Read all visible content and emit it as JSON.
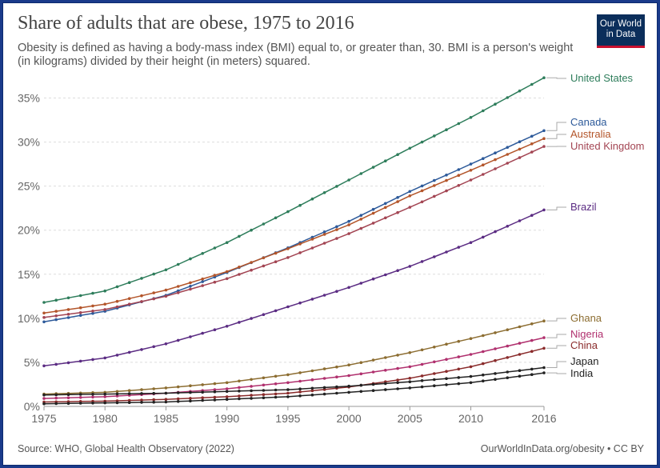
{
  "header": {
    "title": "Share of adults that are obese, 1975 to 2016",
    "subtitle": "Obesity is defined as having a body-mass index (BMI) equal to, or greater than, 30. BMI is a person's weight (in kilograms) divided by their height (in meters) squared.",
    "logo_line1": "Our World",
    "logo_line2": "in Data",
    "logo_bg": "#0b2e5b",
    "logo_accent": "#c8102e"
  },
  "footer": {
    "source": "Source: WHO, Global Health Observatory (2022)",
    "credit": "OurWorldInData.org/obesity • CC BY"
  },
  "chart_data": {
    "type": "line",
    "title": "Share of adults that are obese, 1975 to 2016",
    "xlabel": "",
    "ylabel": "",
    "xlim": [
      1975,
      2016
    ],
    "ylim": [
      0,
      37.5
    ],
    "y_ticks": [
      0,
      5,
      10,
      15,
      20,
      25,
      30,
      35
    ],
    "y_tick_labels": [
      "0%",
      "5%",
      "10%",
      "15%",
      "20%",
      "25%",
      "30%",
      "35%"
    ],
    "x_ticks": [
      1975,
      1980,
      1985,
      1990,
      1995,
      2000,
      2005,
      2010,
      2016
    ],
    "x_tick_labels": [
      "1975",
      "1980",
      "1985",
      "1990",
      "1995",
      "2000",
      "2005",
      "2010",
      "2016"
    ],
    "grid": "horizontal dashed",
    "legend": "labels at right end of lines",
    "series": [
      {
        "name": "United States",
        "color": "#2e7d5b",
        "anchors": [
          [
            1975,
            11.8
          ],
          [
            1980,
            13.1
          ],
          [
            1985,
            15.5
          ],
          [
            1990,
            18.6
          ],
          [
            1995,
            22.1
          ],
          [
            2000,
            25.7
          ],
          [
            2005,
            29.3
          ],
          [
            2010,
            32.8
          ],
          [
            2016,
            37.3
          ]
        ]
      },
      {
        "name": "Canada",
        "color": "#2d5a9a",
        "anchors": [
          [
            1975,
            9.6
          ],
          [
            1980,
            10.8
          ],
          [
            1985,
            12.6
          ],
          [
            1990,
            15.2
          ],
          [
            1995,
            18.0
          ],
          [
            2000,
            21.0
          ],
          [
            2005,
            24.4
          ],
          [
            2010,
            27.5
          ],
          [
            2016,
            31.3
          ]
        ]
      },
      {
        "name": "Australia",
        "color": "#b3552a",
        "anchors": [
          [
            1975,
            10.6
          ],
          [
            1980,
            11.6
          ],
          [
            1985,
            13.2
          ],
          [
            1990,
            15.3
          ],
          [
            1995,
            17.9
          ],
          [
            2000,
            20.6
          ],
          [
            2005,
            23.9
          ],
          [
            2010,
            26.8
          ],
          [
            2016,
            30.4
          ]
        ]
      },
      {
        "name": "United Kingdom",
        "color": "#a34553",
        "anchors": [
          [
            1975,
            10.1
          ],
          [
            1980,
            11.0
          ],
          [
            1985,
            12.5
          ],
          [
            1990,
            14.5
          ],
          [
            1995,
            16.9
          ],
          [
            2000,
            19.6
          ],
          [
            2005,
            22.6
          ],
          [
            2010,
            25.7
          ],
          [
            2016,
            29.5
          ]
        ]
      },
      {
        "name": "Brazil",
        "color": "#5b2c83",
        "anchors": [
          [
            1975,
            4.6
          ],
          [
            1980,
            5.5
          ],
          [
            1985,
            7.1
          ],
          [
            1990,
            9.1
          ],
          [
            1995,
            11.3
          ],
          [
            2000,
            13.5
          ],
          [
            2005,
            15.9
          ],
          [
            2010,
            18.6
          ],
          [
            2016,
            22.3
          ]
        ]
      },
      {
        "name": "Ghana",
        "color": "#8c6d31",
        "anchors": [
          [
            1975,
            1.4
          ],
          [
            1980,
            1.6
          ],
          [
            1985,
            2.1
          ],
          [
            1990,
            2.7
          ],
          [
            1995,
            3.6
          ],
          [
            2000,
            4.7
          ],
          [
            2005,
            6.1
          ],
          [
            2010,
            7.7
          ],
          [
            2016,
            9.7
          ]
        ]
      },
      {
        "name": "Nigeria",
        "color": "#b0306e",
        "anchors": [
          [
            1975,
            0.9
          ],
          [
            1980,
            1.1
          ],
          [
            1985,
            1.5
          ],
          [
            1990,
            2.0
          ],
          [
            1995,
            2.7
          ],
          [
            2000,
            3.5
          ],
          [
            2005,
            4.5
          ],
          [
            2010,
            5.9
          ],
          [
            2016,
            7.8
          ]
        ]
      },
      {
        "name": "China",
        "color": "#8a2b2b",
        "anchors": [
          [
            1975,
            0.5
          ],
          [
            1980,
            0.6
          ],
          [
            1985,
            0.8
          ],
          [
            1990,
            1.1
          ],
          [
            1995,
            1.5
          ],
          [
            2000,
            2.2
          ],
          [
            2005,
            3.2
          ],
          [
            2010,
            4.5
          ],
          [
            2016,
            6.6
          ]
        ]
      },
      {
        "name": "Japan",
        "color": "#222222",
        "anchors": [
          [
            1975,
            1.3
          ],
          [
            1980,
            1.4
          ],
          [
            1985,
            1.5
          ],
          [
            1990,
            1.7
          ],
          [
            1995,
            1.9
          ],
          [
            2000,
            2.3
          ],
          [
            2005,
            2.8
          ],
          [
            2010,
            3.4
          ],
          [
            2016,
            4.4
          ]
        ]
      },
      {
        "name": "India",
        "color": "#222222",
        "anchors": [
          [
            1975,
            0.3
          ],
          [
            1980,
            0.4
          ],
          [
            1985,
            0.5
          ],
          [
            1990,
            0.8
          ],
          [
            1995,
            1.1
          ],
          [
            2000,
            1.6
          ],
          [
            2005,
            2.1
          ],
          [
            2010,
            2.7
          ],
          [
            2016,
            3.8
          ]
        ]
      }
    ]
  }
}
